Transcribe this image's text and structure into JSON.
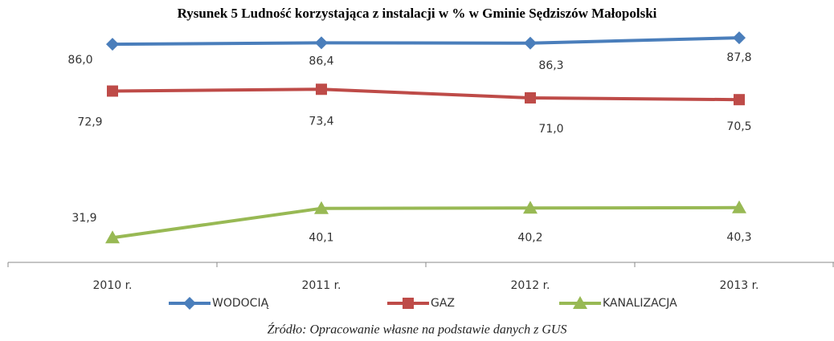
{
  "chart_data": {
    "type": "line",
    "title": "Rysunek 5 Ludność korzystająca z instalacji w % w Gminie Sędziszów Małopolski",
    "categories": [
      "2010 r.",
      "2011 r.",
      "2012 r.",
      "2013 r."
    ],
    "series": [
      {
        "name": "WODOCIĄ",
        "color": "#4a7ebb",
        "marker": "diamond",
        "values": [
          86.0,
          86.4,
          86.3,
          87.8
        ],
        "value_labels": [
          "86,0",
          "86,4",
          "86,3",
          "87,8"
        ]
      },
      {
        "name": "GAZ",
        "color": "#be4b48",
        "marker": "square",
        "values": [
          72.9,
          73.4,
          71.0,
          70.5
        ],
        "value_labels": [
          "72,9",
          "73,4",
          "71,0",
          "70,5"
        ]
      },
      {
        "name": "KANALIZACJA",
        "color": "#98b954",
        "marker": "triangle",
        "values": [
          31.9,
          40.1,
          40.2,
          40.3
        ],
        "value_labels": [
          "31,9",
          "40,1",
          "40,2",
          "40,3"
        ]
      }
    ],
    "ylim": [
      25,
      95
    ],
    "legend": "bottom",
    "source": "Źródło: Opracowanie własne na podstawie danych z GUS"
  }
}
